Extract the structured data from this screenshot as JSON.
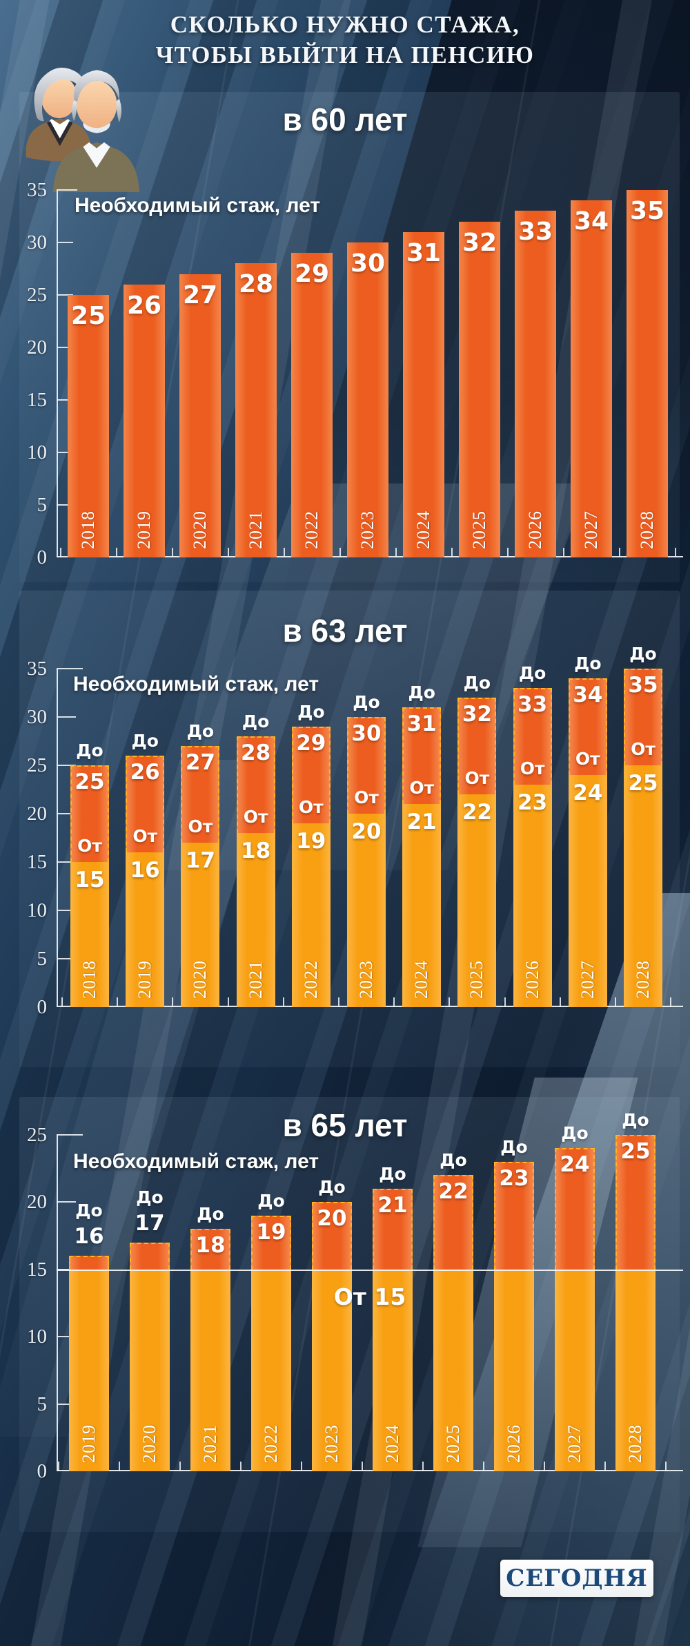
{
  "title": {
    "line1": "СКОЛЬКО НУЖНО СТАЖА,",
    "line2": "ЧТОБЫ ВЫЙТИ НА ПЕНСИЮ"
  },
  "logo": {
    "text": "СЕГОДНЯ"
  },
  "icons": {
    "people": "elderly-couple-icon"
  },
  "colors": {
    "orange": "#EC5D1F",
    "orange_edge": "#F5854A",
    "yellow": "#F89F12",
    "yellow_edge": "#FCB53F",
    "dash": "#FFB51F",
    "background": "#152A42",
    "axis": "#F0F5FA",
    "text": "#FFFFFF",
    "logo_text": "#1B4A7A"
  },
  "chart_data": [
    {
      "type": "bar",
      "title": "в 60 лет",
      "ylabel": "Необходимый стаж, лет",
      "ylim": [
        0,
        35
      ],
      "yticks": [
        0,
        5,
        10,
        15,
        20,
        25,
        30,
        35
      ],
      "grid": false,
      "legend": "none",
      "categories": [
        "2018",
        "2019",
        "2020",
        "2021",
        "2022",
        "2023",
        "2024",
        "2025",
        "2026",
        "2027",
        "2028"
      ],
      "values": [
        25,
        26,
        27,
        28,
        29,
        30,
        31,
        32,
        33,
        34,
        35
      ]
    },
    {
      "type": "stacked_bar",
      "title": "в 63 лет",
      "ylabel": "Необходимый стаж, лет",
      "ylim": [
        0,
        35
      ],
      "yticks": [
        0,
        5,
        10,
        15,
        20,
        25,
        30,
        35
      ],
      "grid": false,
      "legend": "inline-words",
      "categories": [
        "2018",
        "2019",
        "2020",
        "2021",
        "2022",
        "2023",
        "2024",
        "2025",
        "2026",
        "2027",
        "2028"
      ],
      "series": [
        {
          "name": "От",
          "values": [
            15,
            16,
            17,
            18,
            19,
            20,
            21,
            22,
            23,
            24,
            25
          ]
        },
        {
          "name": "До",
          "values": [
            25,
            26,
            27,
            28,
            29,
            30,
            31,
            32,
            33,
            34,
            35
          ]
        }
      ]
    },
    {
      "type": "stacked_bar",
      "title": "в 65 лет",
      "ylabel": "Необходимый стаж, лет",
      "ylim": [
        0,
        25
      ],
      "yticks": [
        0,
        5,
        10,
        15,
        20,
        25
      ],
      "grid": false,
      "legend": "inline-words",
      "categories": [
        "2019",
        "2020",
        "2021",
        "2022",
        "2023",
        "2024",
        "2025",
        "2026",
        "2027",
        "2028"
      ],
      "series": [
        {
          "name": "От",
          "values": [
            15,
            15,
            15,
            15,
            15,
            15,
            15,
            15,
            15,
            15
          ]
        },
        {
          "name": "До",
          "values": [
            16,
            17,
            18,
            19,
            20,
            21,
            22,
            23,
            24,
            25
          ]
        }
      ],
      "baseline_value": 15,
      "annotation": {
        "text": "От 15",
        "at_value": 15
      }
    }
  ]
}
